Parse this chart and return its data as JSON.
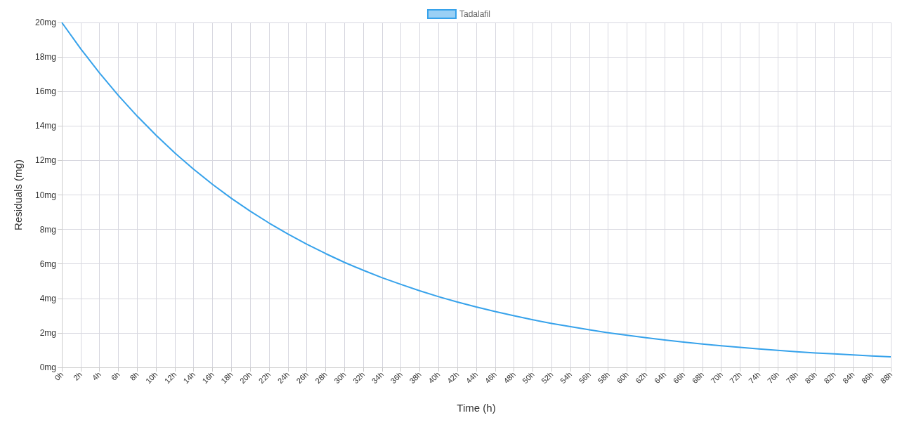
{
  "chart_data": {
    "type": "line",
    "categories": [
      "0h",
      "2h",
      "4h",
      "6h",
      "8h",
      "10h",
      "12h",
      "14h",
      "16h",
      "18h",
      "20h",
      "22h",
      "24h",
      "26h",
      "28h",
      "30h",
      "32h",
      "34h",
      "36h",
      "38h",
      "40h",
      "42h",
      "44h",
      "46h",
      "48h",
      "50h",
      "52h",
      "54h",
      "56h",
      "58h",
      "60h",
      "62h",
      "64h",
      "66h",
      "68h",
      "70h",
      "72h",
      "74h",
      "76h",
      "78h",
      "80h",
      "82h",
      "84h",
      "86h",
      "88h"
    ],
    "series": [
      {
        "name": "Tadalafil",
        "color": "#36a2eb",
        "values": [
          20,
          18.48,
          17.07,
          15.77,
          14.57,
          13.46,
          12.43,
          11.49,
          10.61,
          9.8,
          9.06,
          8.37,
          7.73,
          7.14,
          6.6,
          6.09,
          5.63,
          5.2,
          4.81,
          4.44,
          4.1,
          3.79,
          3.5,
          3.24,
          2.99,
          2.76,
          2.55,
          2.36,
          2.18,
          2.01,
          1.86,
          1.72,
          1.59,
          1.47,
          1.35,
          1.25,
          1.16,
          1.07,
          0.99,
          0.91,
          0.84,
          0.78,
          0.72,
          0.66,
          0.61
        ]
      }
    ],
    "xlabel": "Time (h)",
    "ylabel": "Residuals (mg)",
    "ylim": [
      0,
      20
    ],
    "yticks": [
      {
        "value": 0,
        "label": "0mg"
      },
      {
        "value": 2,
        "label": "2mg"
      },
      {
        "value": 4,
        "label": "4mg"
      },
      {
        "value": 6,
        "label": "6mg"
      },
      {
        "value": 8,
        "label": "8mg"
      },
      {
        "value": 10,
        "label": "10mg"
      },
      {
        "value": 12,
        "label": "12mg"
      },
      {
        "value": 14,
        "label": "14mg"
      },
      {
        "value": 16,
        "label": "16mg"
      },
      {
        "value": 18,
        "label": "18mg"
      },
      {
        "value": 20,
        "label": "20mg"
      }
    ],
    "grid": true,
    "legend": "top",
    "marker": "none",
    "line_style": "solid"
  }
}
